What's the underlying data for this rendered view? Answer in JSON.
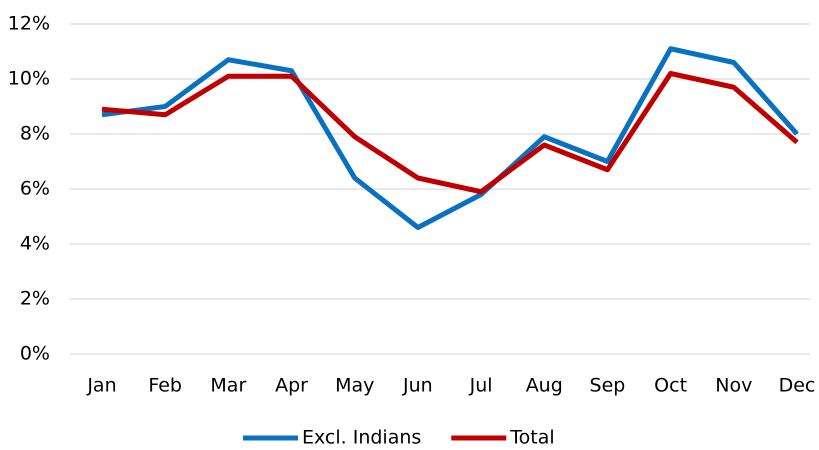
{
  "chart_data": {
    "type": "line",
    "categories": [
      "Jan",
      "Feb",
      "Mar",
      "Apr",
      "May",
      "Jun",
      "Jul",
      "Aug",
      "Sep",
      "Oct",
      "Nov",
      "Dec"
    ],
    "series": [
      {
        "name": "Excl. Indians",
        "color": "#0a70c0",
        "values": [
          8.7,
          9.0,
          10.7,
          10.3,
          6.4,
          4.6,
          5.8,
          7.9,
          7.0,
          11.1,
          10.6,
          8.0
        ]
      },
      {
        "name": "Total",
        "color": "#c00000",
        "values": [
          8.9,
          8.7,
          10.1,
          10.1,
          7.9,
          6.4,
          5.9,
          7.6,
          6.7,
          10.2,
          9.7,
          7.7
        ]
      }
    ],
    "ylim": [
      0,
      12
    ],
    "yticks": [
      {
        "value": 0,
        "label": "0%"
      },
      {
        "value": 2,
        "label": "2%"
      },
      {
        "value": 4,
        "label": "4%"
      },
      {
        "value": 6,
        "label": "6%"
      },
      {
        "value": 8,
        "label": "8%"
      },
      {
        "value": 10,
        "label": "10%"
      },
      {
        "value": 12,
        "label": "12%"
      }
    ],
    "grid": true,
    "legend": "bottom"
  }
}
